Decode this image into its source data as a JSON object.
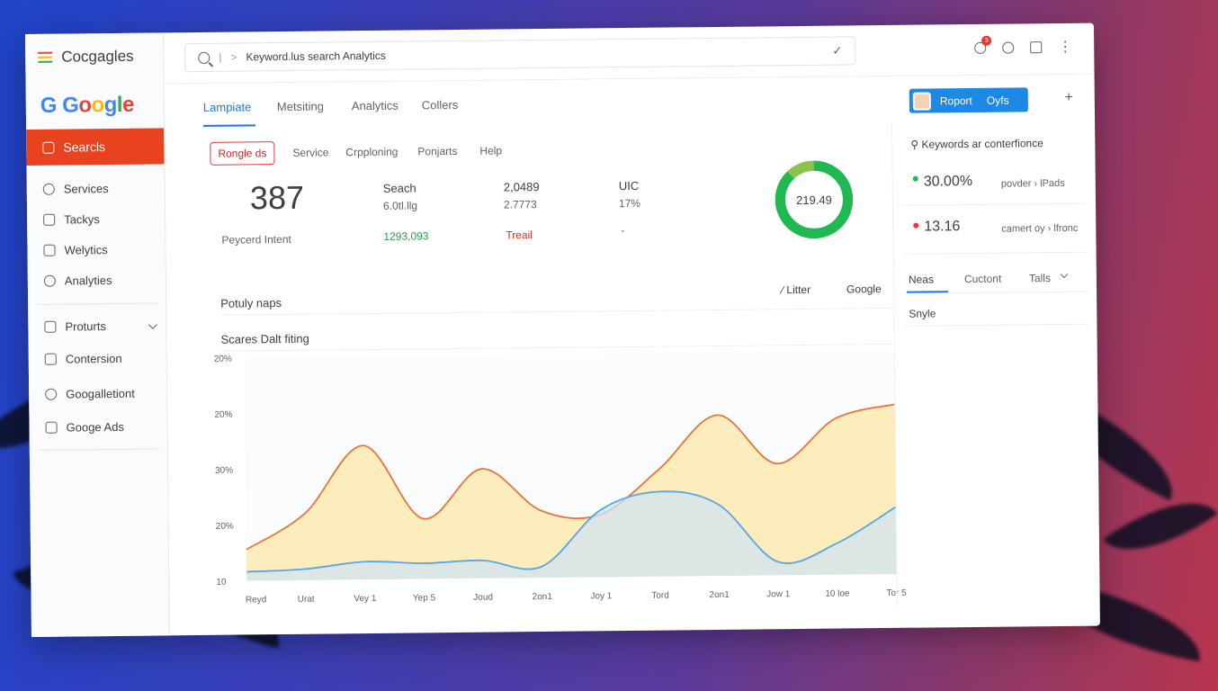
{
  "app": {
    "brand_text": "Cocgagles",
    "logo_g": "G",
    "logo_rest": "Google"
  },
  "sidebar": {
    "active_item": "Searcls",
    "items": [
      {
        "label": "Services",
        "icon": "user-icon"
      },
      {
        "label": "Tackys",
        "icon": "tag-icon"
      },
      {
        "label": "Welytics",
        "icon": "chart-icon"
      },
      {
        "label": "Analyties",
        "icon": "circle-icon"
      },
      {
        "label": "Proturts",
        "icon": "box-icon"
      },
      {
        "label": "Contersion",
        "icon": "doc-icon"
      },
      {
        "label": "Googalletiont",
        "icon": "circle-icon"
      },
      {
        "label": "Googe Ads",
        "icon": "ads-icon"
      }
    ]
  },
  "search": {
    "value": "Keyword.lus search Analytics",
    "divider": "|",
    "prefix": ">",
    "clear_glyph": "✓"
  },
  "topbar": {
    "badge_count": "3",
    "more_glyph": "⋮"
  },
  "tabs": [
    "Lampiate",
    "Metsiting",
    "Analytics",
    "Collers"
  ],
  "actions": {
    "report_label": "Roport",
    "report_secondary": "Oyfs",
    "plus_glyph": "+"
  },
  "subtabs": {
    "chip": "Rongle ds",
    "items": [
      "Service",
      "Crpploning",
      "Ponjarts",
      "Help"
    ]
  },
  "stats": {
    "big_value": "387",
    "big_label": "Peycerd Intent",
    "col1": {
      "title": "Seach",
      "value": "6.0tl.llg",
      "trend": "1293,093"
    },
    "col2": {
      "title": "2,0489",
      "value": "2.7773",
      "trend": "Treail"
    },
    "col3": {
      "title": "UIC",
      "value": "17%",
      "trend": "-"
    }
  },
  "donut": {
    "label": "219.49",
    "fraction": 0.88,
    "color": "#1fb851",
    "accent": "#8bc34a"
  },
  "popular": {
    "title": "Potuly naps",
    "filter": "Litter",
    "link": "Google",
    "filter_glyph": "⁄"
  },
  "chart_data": {
    "type": "area",
    "title": "Scares Dalt fiting",
    "y_tick_labels": [
      "20%",
      "20%",
      "30%",
      "20%",
      "10"
    ],
    "categories": [
      "Reyd",
      "Urat",
      "Vey 1",
      "Yep 5",
      "Joud",
      "2on1",
      "Joy 1",
      "Tord",
      "2on1",
      "Jow 1",
      "10 loe",
      "Tor 5"
    ],
    "series": [
      {
        "values": [
          0.14,
          0.3,
          0.6,
          0.27,
          0.49,
          0.3,
          0.28,
          0.48,
          0.72,
          0.5,
          0.7,
          0.76
        ],
        "color": "#e8743b"
      },
      {
        "values": [
          0.04,
          0.05,
          0.08,
          0.07,
          0.08,
          0.05,
          0.3,
          0.38,
          0.32,
          0.06,
          0.14,
          0.3
        ],
        "color": "#5ba4e6"
      }
    ]
  },
  "right_panel": {
    "title": "Keywords ar conterfionce",
    "metrics": [
      {
        "value": "30.00%",
        "desc": "povder › lPads",
        "dot": "#1fb851"
      },
      {
        "value": "13.16",
        "desc": "camert oy › lfronc",
        "dot": "#e53935"
      }
    ],
    "tabs": [
      "Neas",
      "Cuctont",
      "Talls"
    ],
    "style_label": "Snyle"
  }
}
